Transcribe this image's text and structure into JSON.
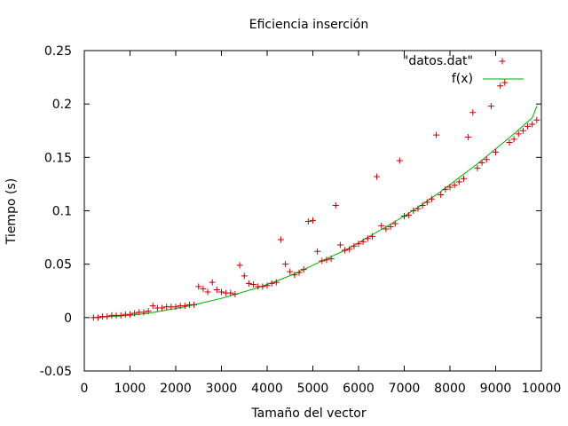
{
  "chart_data": {
    "type": "scatter",
    "title": "Eficiencia inserción",
    "xlabel": "Tamaño del vector",
    "ylabel": "Tiempo (s)",
    "xlim": [
      0,
      10000
    ],
    "ylim": [
      -0.05,
      0.25
    ],
    "xticks": [
      0,
      1000,
      2000,
      3000,
      4000,
      5000,
      6000,
      7000,
      8000,
      9000,
      10000
    ],
    "yticks": [
      -0.05,
      0,
      0.05,
      0.1,
      0.15,
      0.2,
      0.25
    ],
    "xtick_labels": [
      "0",
      "1000",
      "2000",
      "3000",
      "4000",
      "5000",
      "6000",
      "7000",
      "8000",
      "9000",
      "10000"
    ],
    "ytick_labels": [
      "-0.05",
      "0",
      "0.05",
      "0.1",
      "0.15",
      "0.2",
      "0.25"
    ],
    "grid": false,
    "legend_position": "top-right",
    "series": [
      {
        "name": "\"datos.dat\"",
        "kind": "points",
        "color": "#c00000",
        "marker": "plus",
        "x": [
          200,
          300,
          400,
          500,
          600,
          700,
          800,
          900,
          1000,
          1100,
          1200,
          1300,
          1400,
          1500,
          1600,
          1700,
          1800,
          1900,
          2000,
          2100,
          2200,
          2300,
          2400,
          2500,
          2600,
          2700,
          2800,
          2900,
          3000,
          3100,
          3200,
          3300,
          3400,
          3500,
          3600,
          3700,
          3800,
          3900,
          4000,
          4100,
          4200,
          4300,
          4400,
          4500,
          4600,
          4700,
          4800,
          4900,
          5000,
          5100,
          5200,
          5300,
          5400,
          5500,
          5600,
          5700,
          5800,
          5900,
          6000,
          6100,
          6200,
          6300,
          6400,
          6500,
          6600,
          6700,
          6800,
          6900,
          7000,
          7100,
          7200,
          7300,
          7400,
          7500,
          7600,
          7700,
          7800,
          7900,
          8000,
          8100,
          8200,
          8300,
          8400,
          8500,
          8600,
          8700,
          8800,
          8900,
          9000,
          9100,
          9200,
          9300,
          9400,
          9500,
          9600,
          9700,
          9800,
          9900
        ],
        "y": [
          0.0,
          0.0,
          0.001,
          0.001,
          0.002,
          0.002,
          0.002,
          0.003,
          0.003,
          0.004,
          0.005,
          0.005,
          0.006,
          0.011,
          0.009,
          0.009,
          0.01,
          0.01,
          0.01,
          0.011,
          0.011,
          0.012,
          0.012,
          0.029,
          0.027,
          0.024,
          0.033,
          0.026,
          0.024,
          0.023,
          0.023,
          0.022,
          0.049,
          0.039,
          0.032,
          0.031,
          0.029,
          0.029,
          0.03,
          0.032,
          0.033,
          0.073,
          0.05,
          0.043,
          0.04,
          0.042,
          0.045,
          0.09,
          0.091,
          0.062,
          0.053,
          0.054,
          0.055,
          0.105,
          0.068,
          0.063,
          0.064,
          0.067,
          0.069,
          0.071,
          0.074,
          0.076,
          0.132,
          0.086,
          0.083,
          0.085,
          0.088,
          0.147,
          0.095,
          0.096,
          0.1,
          0.102,
          0.105,
          0.108,
          0.111,
          0.171,
          0.115,
          0.12,
          0.122,
          0.124,
          0.127,
          0.13,
          0.169,
          0.192,
          0.14,
          0.145,
          0.148,
          0.198,
          0.155,
          0.217,
          0.22,
          0.164,
          0.167,
          0.172,
          0.175,
          0.179,
          0.181,
          0.185
        ]
      },
      {
        "name": "f(x)",
        "kind": "line",
        "color": "#00aa00",
        "x": [
          200,
          600,
          1000,
          1400,
          1800,
          2200,
          2600,
          3000,
          3400,
          3800,
          4200,
          4600,
          5000,
          5400,
          5800,
          6200,
          6600,
          7000,
          7400,
          7800,
          8200,
          8600,
          9000,
          9400,
          9800,
          9900
        ],
        "y": [
          0.0,
          0.001,
          0.002,
          0.004,
          0.007,
          0.01,
          0.014,
          0.018,
          0.023,
          0.028,
          0.034,
          0.041,
          0.049,
          0.057,
          0.065,
          0.075,
          0.085,
          0.095,
          0.106,
          0.118,
          0.131,
          0.144,
          0.158,
          0.172,
          0.187,
          0.198
        ]
      }
    ]
  }
}
